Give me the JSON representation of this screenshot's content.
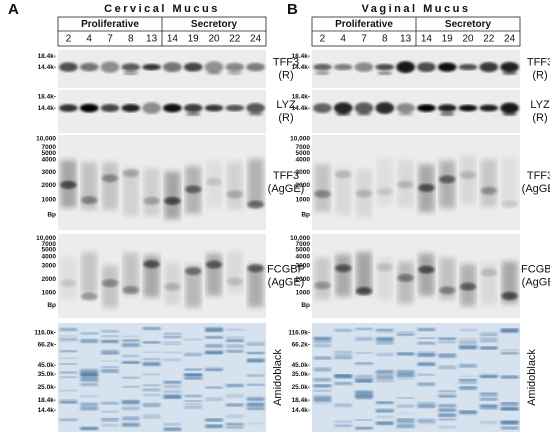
{
  "panels": [
    {
      "letter": "A",
      "title": "Cervical Mucus",
      "groups": [
        "Proliferative",
        "Secretory"
      ],
      "lanes": [
        "2",
        "4",
        "7",
        "8",
        "13",
        "14",
        "19",
        "20",
        "22",
        "24"
      ],
      "blots": [
        {
          "label": [
            "TFF3",
            "(R)"
          ],
          "markers": [
            "18.4k-",
            "14.4k-"
          ]
        },
        {
          "label": [
            "LYZ",
            "(R)"
          ],
          "markers": [
            "18.4k-",
            "14.4k-"
          ]
        },
        {
          "label": [
            "TFF3",
            "(AgGE)"
          ],
          "markers": [
            "10,000",
            "7000",
            "5000",
            "4000",
            "3000",
            "2000",
            "1000",
            "Bp"
          ]
        },
        {
          "label": [
            "FCGBP",
            "(AgGE)"
          ],
          "markers": [
            "10,000",
            "7000",
            "5000",
            "4000",
            "3000",
            "2000",
            "1000",
            "Bp"
          ]
        },
        {
          "label": [
            "Amidoblack"
          ],
          "markers": [
            "116.0k-",
            "66.2k-",
            "45.0k-",
            "35.0k-",
            "25.0k-",
            "18.4k-",
            "14.4k-"
          ]
        }
      ]
    },
    {
      "letter": "B",
      "title": "Vaginal Mucus",
      "groups": [
        "Proliferative",
        "Secretory"
      ],
      "lanes": [
        "2",
        "4",
        "7",
        "8",
        "13",
        "14",
        "19",
        "20",
        "22",
        "24"
      ],
      "blots": [
        {
          "label": [
            "TFF3",
            "(R)"
          ],
          "markers": [
            "18.4k-",
            "14.4k-"
          ]
        },
        {
          "label": [
            "LYZ",
            "(R)"
          ],
          "markers": [
            "18.4k-",
            "14.4k-"
          ]
        },
        {
          "label": [
            "TFF3",
            "(AgGE)"
          ],
          "markers": [
            "10,000",
            "7000",
            "5000",
            "4000",
            "3000",
            "2000",
            "1000",
            "Bp"
          ]
        },
        {
          "label": [
            "FCGBP",
            "(AgGE)"
          ],
          "markers": [
            "10,000",
            "7000",
            "5000",
            "4000",
            "3000",
            "2000",
            "1000",
            "Bp"
          ]
        },
        {
          "label": [
            "Amidoblack"
          ],
          "markers": [
            "116.0k-",
            "66.2k-",
            "45.0k-",
            "35.0k-",
            "25.0k-",
            "18.4k-",
            "14.4k-"
          ]
        }
      ]
    }
  ]
}
